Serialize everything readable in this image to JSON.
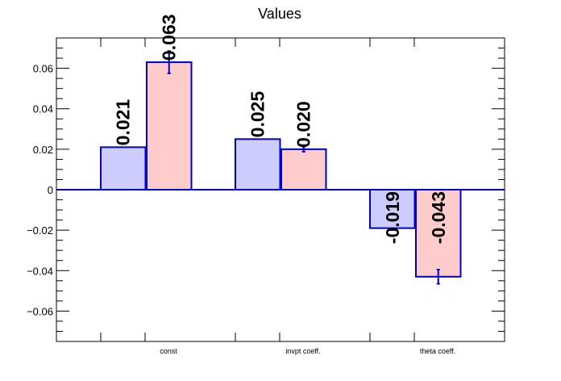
{
  "chart_data": {
    "type": "bar",
    "title": "Values",
    "xlabel": "",
    "ylabel": "",
    "ylim": [
      -0.075,
      0.075
    ],
    "yticks": [
      -0.06,
      -0.04,
      -0.02,
      0,
      0.02,
      0.04,
      0.06
    ],
    "ytick_labels": [
      "−0.06",
      "−0.04",
      "−0.02",
      "0",
      "0.02",
      "0.04",
      "0.06"
    ],
    "categories": [
      "const",
      "invpt coeff.",
      "theta coeff."
    ],
    "series": [
      {
        "color": "#ccccff",
        "values": [
          0.021,
          0.025,
          -0.019
        ],
        "errors": [
          0,
          0,
          0
        ],
        "labels": [
          "0.021",
          "0.025",
          "-0.019"
        ]
      },
      {
        "color": "#ffcccc",
        "values": [
          0.063,
          0.02,
          -0.043
        ],
        "errors": [
          0.0055,
          0.0012,
          0.0035
        ],
        "labels": [
          "0.063",
          "0.020",
          "-0.043"
        ]
      }
    ],
    "bar_edge_color": "#0000cc",
    "zero_line_color": "#0000cc",
    "grid": false,
    "legend": "none"
  }
}
